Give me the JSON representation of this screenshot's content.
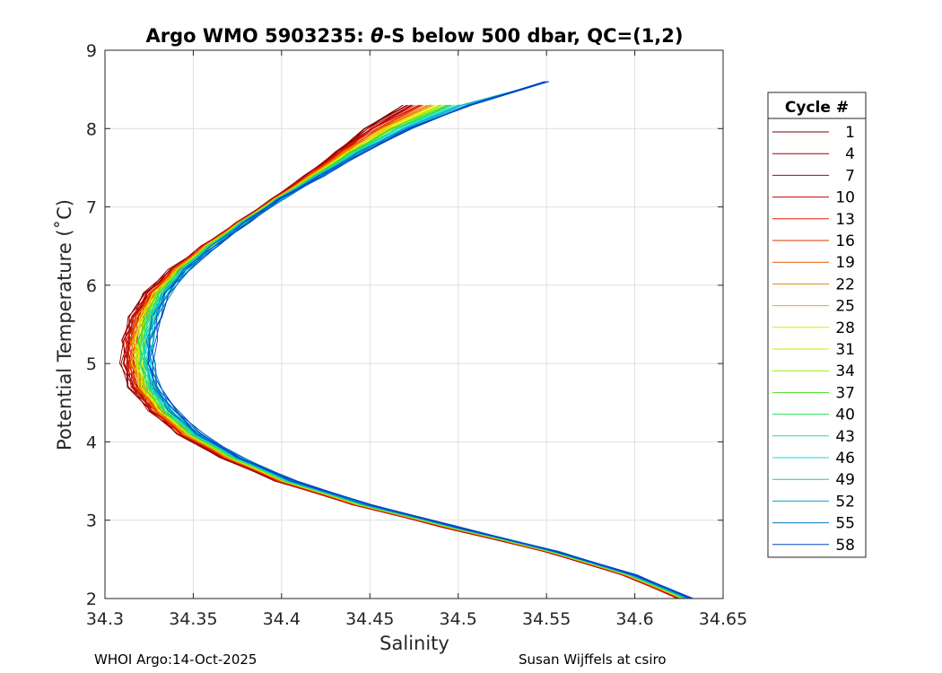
{
  "footer": {
    "left": "WHOI Argo:14-Oct-2025",
    "right": "Susan Wijffels at csiro"
  },
  "chart_data": {
    "type": "line",
    "title_prefix": "Argo WMO 5903235: ",
    "title_symbol": "θ",
    "title_suffix": "-S below 500 dbar,  QC=(1,2)",
    "title": "Argo WMO 5903235: θ-S below 500 dbar,  QC=(1,2)",
    "xlabel": "Salinity",
    "ylabel": "Potential Temperature (˚C)",
    "xlim": [
      34.3,
      34.65
    ],
    "ylim": [
      2,
      9
    ],
    "xticks": [
      34.3,
      34.35,
      34.4,
      34.45,
      34.5,
      34.55,
      34.6,
      34.65
    ],
    "xtick_labels": [
      "34.3",
      "34.35",
      "34.4",
      "34.45",
      "34.5",
      "34.55",
      "34.6",
      "34.65"
    ],
    "yticks": [
      2,
      3,
      4,
      5,
      6,
      7,
      8,
      9
    ],
    "ytick_labels": [
      "2",
      "3",
      "4",
      "5",
      "6",
      "7",
      "8",
      "9"
    ],
    "grid": true,
    "legend_title": "Cycle #",
    "legend_position": "right",
    "legend": [
      {
        "label": "1",
        "color": "#7f0000"
      },
      {
        "label": "4",
        "color": "#990000"
      },
      {
        "label": "7",
        "color": "#b30000"
      },
      {
        "label": "10",
        "color": "#cc0000"
      },
      {
        "label": "13",
        "color": "#dd1a00"
      },
      {
        "label": "16",
        "color": "#e63300"
      },
      {
        "label": "19",
        "color": "#e65c00"
      },
      {
        "label": "22",
        "color": "#f08000"
      },
      {
        "label": "25",
        "color": "#f0a800"
      },
      {
        "label": "28",
        "color": "#e6e600"
      },
      {
        "label": "31",
        "color": "#c8f000"
      },
      {
        "label": "34",
        "color": "#99ee00"
      },
      {
        "label": "37",
        "color": "#44dd22"
      },
      {
        "label": "40",
        "color": "#22dd55"
      },
      {
        "label": "43",
        "color": "#22dd99"
      },
      {
        "label": "46",
        "color": "#11dddd"
      },
      {
        "label": "49",
        "color": "#11cccc"
      },
      {
        "label": "52",
        "color": "#00aacc"
      },
      {
        "label": "55",
        "color": "#0077bb"
      },
      {
        "label": "58",
        "color": "#0044cc"
      }
    ],
    "profile_shape": {
      "temperature": [
        2.0,
        2.3,
        2.6,
        2.9,
        3.2,
        3.5,
        3.8,
        4.1,
        4.4,
        4.7,
        5.0,
        5.3,
        5.6,
        5.9,
        6.2,
        6.5,
        6.8,
        7.1,
        7.4,
        7.7,
        8.0,
        8.3,
        8.6
      ],
      "salinity_first_cycles": [
        34.625,
        34.594,
        34.55,
        34.494,
        34.441,
        34.398,
        34.367,
        34.342,
        34.326,
        34.315,
        34.311,
        34.311,
        34.315,
        34.324,
        34.338,
        34.356,
        34.376,
        34.396,
        34.414,
        34.431,
        34.448,
        34.47,
        null
      ],
      "salinity_last_cycles": [
        34.632,
        34.6,
        34.556,
        34.502,
        34.449,
        34.407,
        34.377,
        34.354,
        34.339,
        34.33,
        34.327,
        34.327,
        34.33,
        34.336,
        34.347,
        34.362,
        34.38,
        34.4,
        34.423,
        34.446,
        34.473,
        34.508,
        34.55
      ]
    }
  }
}
